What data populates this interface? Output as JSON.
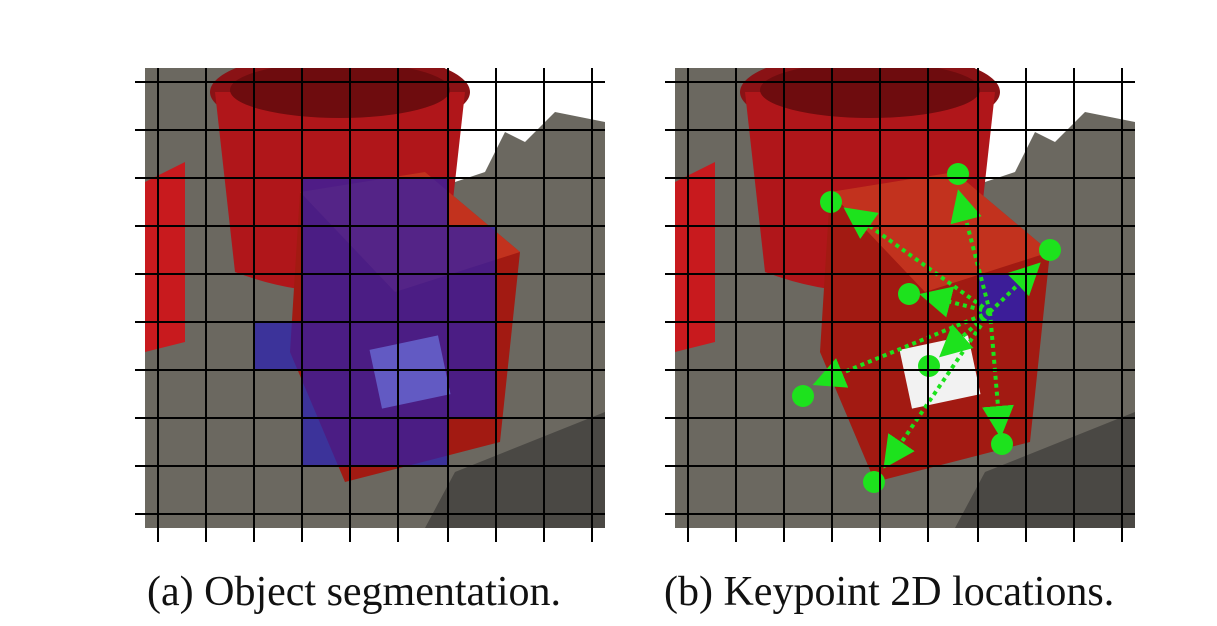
{
  "figure": {
    "panels": [
      {
        "id": "a",
        "caption": "(a) Object segmentation.",
        "overlay_color": "#2a1fb0"
      },
      {
        "id": "b",
        "caption": "(b) Keypoint 2D locations.",
        "keypoint_color": "#1de21d",
        "cell_color": "#2a1fb0"
      }
    ],
    "grid_color": "#000000",
    "scene_colors": {
      "floor": "#6b6860",
      "bucket": "#b0161a",
      "box": "#a21a12",
      "background": "#ffffff"
    }
  }
}
